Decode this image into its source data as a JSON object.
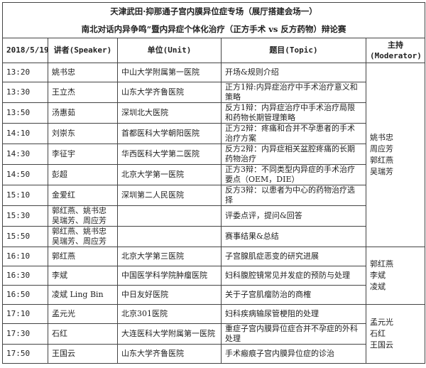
{
  "title_line1": "天津武田·抑那通子宫内膜异位症专场（展厅搭建会场一）",
  "title_line2": "南北对话内异争鸣”暨内异症个体化治疗（正方手术 vs 反方药物）辩论赛",
  "headers": {
    "date": "2018/5/19",
    "speaker": "讲者(Speaker)",
    "unit": "单位(Unit)",
    "topic": "题目(Topic)",
    "moderator": "主持\n(Moderator)"
  },
  "rows": [
    {
      "time": "13:20",
      "speaker": "姚书忠",
      "unit": "中山大学附属第一医院",
      "topic": "开场&规则介绍"
    },
    {
      "time": "13:30",
      "speaker": "王立杰",
      "unit": "山东大学齐鲁医院",
      "topic": "正方1辩:内异症治疗中手术治疗意义和策略"
    },
    {
      "time": "13:50",
      "speaker": "汤惠茹",
      "unit": "深圳北大医院",
      "topic": "反方1辩：内异症治疗中手术治疗局限和药物长期管理策略"
    },
    {
      "time": "14:10",
      "speaker": "刘崇东",
      "unit": "首都医科大学朝阳医院",
      "topic": "正方2辩：疼痛和合并不孕患者的手术治疗方案"
    },
    {
      "time": "14:30",
      "speaker": "李征宇",
      "unit": "华西医科大学第二医院",
      "topic": "反方2辩：内异症相关盆腔疼痛的长期药物治疗"
    },
    {
      "time": "14:50",
      "speaker": "彭超",
      "unit": "北京大学第一医院",
      "topic": "正方3辩：不同类型内异症的手术治疗要点（OEM，DIE）"
    },
    {
      "time": "15:10",
      "speaker": "金爱红",
      "unit": "深圳第二人民医院",
      "topic": "反方3辩：以患者为中心的药物治疗选择"
    },
    {
      "time": "15:30",
      "speaker": "郭红燕、姚书忠\n吴瑞芳、周应芳",
      "unit": "",
      "topic": "评委点评，提问&回答"
    },
    {
      "time": "15:50",
      "speaker": "郭红燕、姚书忠\n吴瑞芳、周应芳",
      "unit": "",
      "topic": "赛事结果&总结"
    },
    {
      "time": "16:10",
      "speaker": "郭红燕",
      "unit": "北京大学第三医院",
      "topic": "子宫腺肌症恶变的研究进展"
    },
    {
      "time": "16:30",
      "speaker": "李斌",
      "unit": "中国医学科学院肿瘤医院",
      "topic": "妇科腹腔镜常见并发症的预防与处理"
    },
    {
      "time": "16:50",
      "speaker": "凌斌 Ling Bin",
      "unit": "中日友好医院",
      "topic": "关于子宫肌瘤防治的商榷"
    },
    {
      "time": "17:10",
      "speaker": "孟元光",
      "unit": "北京301医院",
      "topic": "妇科疾病输尿管梗阻的处理"
    },
    {
      "time": "17:30",
      "speaker": "石红",
      "unit": "大连医科大学附属第一医院",
      "topic": "重症子宫内膜异位症合并不孕症的外科处理"
    },
    {
      "time": "17:50",
      "speaker": "王国云",
      "unit": "山东大学齐鲁医院",
      "topic": "手术瘢痕子宫内膜异位症的诊治"
    }
  ],
  "moderators": [
    "姚书忠\n周应芳\n郭红燕\n吴瑞芳",
    "郭红燕\n李斌\n凌斌",
    "孟元光\n石红\n王国云"
  ]
}
